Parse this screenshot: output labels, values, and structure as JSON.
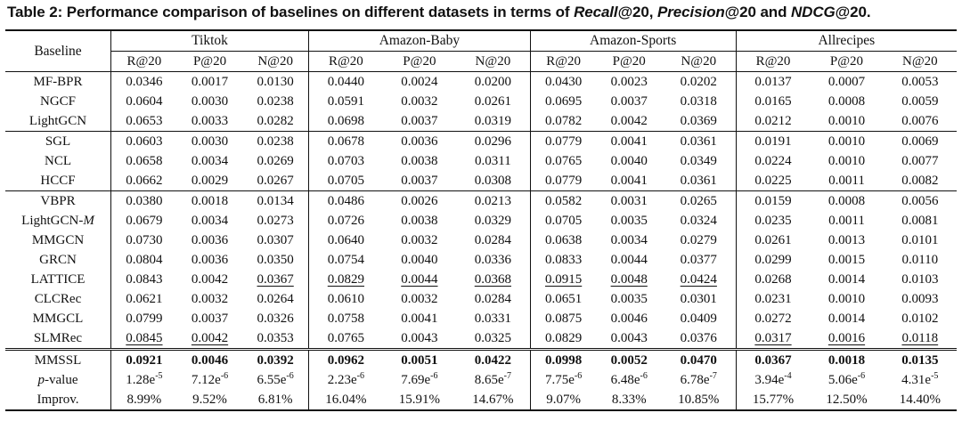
{
  "caption": "Table 2: Performance comparison of baselines on different datasets in terms of ",
  "caption_metrics": [
    "Recall",
    "@20, ",
    "Precision",
    "@20 and ",
    "NDCG",
    "@20."
  ],
  "header": {
    "baseline": "Baseline",
    "datasets": [
      "Tiktok",
      "Amazon-Baby",
      "Amazon-Sports",
      "Allrecipes"
    ],
    "metrics": [
      "R@20",
      "P@20",
      "N@20"
    ]
  },
  "groups": [
    [
      {
        "name": "MF-BPR",
        "vals": [
          "0.0346",
          "0.0017",
          "0.0130",
          "0.0440",
          "0.0024",
          "0.0200",
          "0.0430",
          "0.0023",
          "0.0202",
          "0.0137",
          "0.0007",
          "0.0053"
        ]
      },
      {
        "name": "NGCF",
        "vals": [
          "0.0604",
          "0.0030",
          "0.0238",
          "0.0591",
          "0.0032",
          "0.0261",
          "0.0695",
          "0.0037",
          "0.0318",
          "0.0165",
          "0.0008",
          "0.0059"
        ]
      },
      {
        "name": "LightGCN",
        "vals": [
          "0.0653",
          "0.0033",
          "0.0282",
          "0.0698",
          "0.0037",
          "0.0319",
          "0.0782",
          "0.0042",
          "0.0369",
          "0.0212",
          "0.0010",
          "0.0076"
        ]
      }
    ],
    [
      {
        "name": "SGL",
        "vals": [
          "0.0603",
          "0.0030",
          "0.0238",
          "0.0678",
          "0.0036",
          "0.0296",
          "0.0779",
          "0.0041",
          "0.0361",
          "0.0191",
          "0.0010",
          "0.0069"
        ]
      },
      {
        "name": "NCL",
        "vals": [
          "0.0658",
          "0.0034",
          "0.0269",
          "0.0703",
          "0.0038",
          "0.0311",
          "0.0765",
          "0.0040",
          "0.0349",
          "0.0224",
          "0.0010",
          "0.0077"
        ]
      },
      {
        "name": "HCCF",
        "vals": [
          "0.0662",
          "0.0029",
          "0.0267",
          "0.0705",
          "0.0037",
          "0.0308",
          "0.0779",
          "0.0041",
          "0.0361",
          "0.0225",
          "0.0011",
          "0.0082"
        ]
      }
    ],
    [
      {
        "name": "VBPR",
        "vals": [
          "0.0380",
          "0.0018",
          "0.0134",
          "0.0486",
          "0.0026",
          "0.0213",
          "0.0582",
          "0.0031",
          "0.0265",
          "0.0159",
          "0.0008",
          "0.0056"
        ]
      },
      {
        "name": "LightGCN-",
        "name_italic": "M",
        "vals": [
          "0.0679",
          "0.0034",
          "0.0273",
          "0.0726",
          "0.0038",
          "0.0329",
          "0.0705",
          "0.0035",
          "0.0324",
          "0.0235",
          "0.0011",
          "0.0081"
        ]
      },
      {
        "name": "MMGCN",
        "vals": [
          "0.0730",
          "0.0036",
          "0.0307",
          "0.0640",
          "0.0032",
          "0.0284",
          "0.0638",
          "0.0034",
          "0.0279",
          "0.0261",
          "0.0013",
          "0.0101"
        ]
      },
      {
        "name": "GRCN",
        "vals": [
          "0.0804",
          "0.0036",
          "0.0350",
          "0.0754",
          "0.0040",
          "0.0336",
          "0.0833",
          "0.0044",
          "0.0377",
          "0.0299",
          "0.0015",
          "0.0110"
        ]
      },
      {
        "name": "LATTICE",
        "vals": [
          "0.0843",
          "0.0042",
          "0.0367",
          "0.0829",
          "0.0044",
          "0.0368",
          "0.0915",
          "0.0048",
          "0.0424",
          "0.0268",
          "0.0014",
          "0.0103"
        ],
        "underline": [
          2,
          3,
          4,
          5,
          6,
          7,
          8
        ]
      },
      {
        "name": "CLCRec",
        "vals": [
          "0.0621",
          "0.0032",
          "0.0264",
          "0.0610",
          "0.0032",
          "0.0284",
          "0.0651",
          "0.0035",
          "0.0301",
          "0.0231",
          "0.0010",
          "0.0093"
        ]
      },
      {
        "name": "MMGCL",
        "vals": [
          "0.0799",
          "0.0037",
          "0.0326",
          "0.0758",
          "0.0041",
          "0.0331",
          "0.0875",
          "0.0046",
          "0.0409",
          "0.0272",
          "0.0014",
          "0.0102"
        ]
      },
      {
        "name": "SLMRec",
        "vals": [
          "0.0845",
          "0.0042",
          "0.0353",
          "0.0765",
          "0.0043",
          "0.0325",
          "0.0829",
          "0.0043",
          "0.0376",
          "0.0317",
          "0.0016",
          "0.0118"
        ],
        "underline": [
          0,
          1,
          9,
          10,
          11
        ]
      }
    ]
  ],
  "final": [
    {
      "name": "MMSSL",
      "bold": true,
      "vals": [
        "0.0921",
        "0.0046",
        "0.0392",
        "0.0962",
        "0.0051",
        "0.0422",
        "0.0998",
        "0.0052",
        "0.0470",
        "0.0367",
        "0.0018",
        "0.0135"
      ]
    },
    {
      "name_italic": "p",
      "name": "-value",
      "pvals": [
        [
          "1.28e",
          "-5"
        ],
        [
          "7.12e",
          "-6"
        ],
        [
          "6.55e",
          "-6"
        ],
        [
          "2.23e",
          "-6"
        ],
        [
          "7.69e",
          "-6"
        ],
        [
          "8.65e",
          "-7"
        ],
        [
          "7.75e",
          "-6"
        ],
        [
          "6.48e",
          "-6"
        ],
        [
          "6.78e",
          "-7"
        ],
        [
          "3.94e",
          "-4"
        ],
        [
          "5.06e",
          "-6"
        ],
        [
          "4.31e",
          "-5"
        ]
      ]
    },
    {
      "name": "Improv.",
      "vals": [
        "8.99%",
        "9.52%",
        "6.81%",
        "16.04%",
        "15.91%",
        "14.67%",
        "9.07%",
        "8.33%",
        "10.85%",
        "15.77%",
        "12.50%",
        "14.40%"
      ]
    }
  ]
}
